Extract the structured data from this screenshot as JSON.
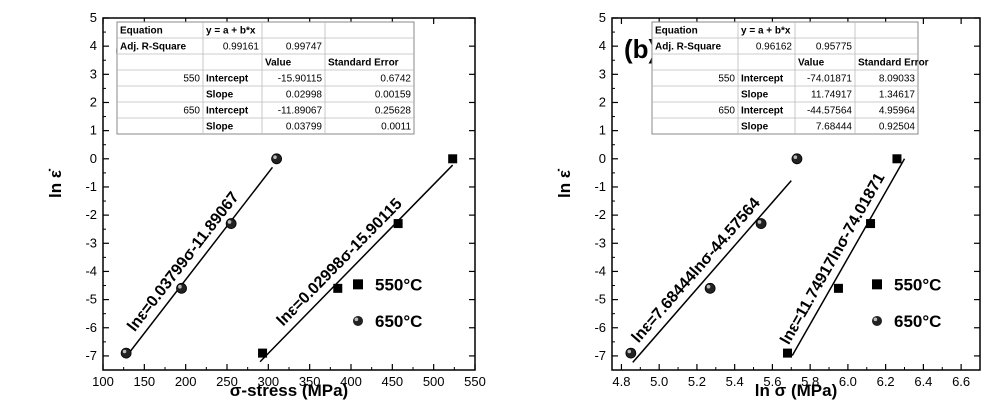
{
  "chart_data": [
    {
      "type": "scatter",
      "panel_label": "(a)",
      "xlabel": "σ-stress (MPa)",
      "ylabel": "ln ε̇",
      "xlim": [
        100,
        550
      ],
      "ylim": [
        -7.5,
        5
      ],
      "x_ticks": [
        "100",
        "150",
        "200",
        "250",
        "300",
        "350",
        "400",
        "450",
        "500",
        "550"
      ],
      "y_ticks": [
        "5",
        "4",
        "3",
        "2",
        "1",
        "0",
        "-1",
        "-2",
        "-3",
        "-4",
        "-5",
        "-6",
        "-7"
      ],
      "series": [
        {
          "name": "550°C",
          "marker": "square",
          "points": [
            [
              293,
              -6.9
            ],
            [
              384,
              -4.6
            ],
            [
              457,
              -2.3
            ],
            [
              523,
              0.0
            ]
          ],
          "fit": {
            "intercept": -15.90115,
            "slope": 0.02998,
            "x_range": [
              290,
              523
            ]
          }
        },
        {
          "name": "650°C",
          "marker": "sphere",
          "points": [
            [
              128,
              -6.9
            ],
            [
              195,
              -4.6
            ],
            [
              255,
              -2.3
            ],
            [
              310,
              0.0
            ]
          ],
          "fit": {
            "intercept": -11.89067,
            "slope": 0.03799,
            "x_range": [
              128,
              305
            ]
          }
        }
      ],
      "annotations": [
        "lnε=0.03799σ-11.89067",
        "lnε=0.02998σ-15.90115"
      ],
      "legend": [
        "550°C",
        "650°C"
      ],
      "table": {
        "rows": [
          [
            "Equation",
            "y = a + b*x",
            "",
            ""
          ],
          [
            "Adj. R-Square",
            "0.99161",
            "0.99747",
            ""
          ],
          [
            "",
            "",
            "Value",
            "Standard Error"
          ],
          [
            "550",
            "Intercept",
            "-15.90115",
            "0.6742"
          ],
          [
            "",
            "Slope",
            "0.02998",
            "0.00159"
          ],
          [
            "650",
            "Intercept",
            "-11.89067",
            "0.25628"
          ],
          [
            "",
            "Slope",
            "0.03799",
            "0.0011"
          ]
        ]
      }
    },
    {
      "type": "scatter",
      "panel_label": "(b)",
      "xlabel": "ln σ (MPa)",
      "ylabel": "ln ε̇",
      "xlim": [
        4.75,
        6.7
      ],
      "ylim": [
        -7.5,
        5
      ],
      "x_ticks": [
        "4.8",
        "5.0",
        "5.2",
        "5.4",
        "5.6",
        "5.8",
        "6.0",
        "6.2",
        "6.4",
        "6.6"
      ],
      "y_ticks": [
        "5",
        "4",
        "3",
        "2",
        "1",
        "0",
        "-1",
        "-2",
        "-3",
        "-4",
        "-5",
        "-6",
        "-7"
      ],
      "series": [
        {
          "name": "550°C",
          "marker": "square",
          "points": [
            [
              5.68,
              -6.9
            ],
            [
              5.95,
              -4.6
            ],
            [
              6.12,
              -2.3
            ],
            [
              6.26,
              0.0
            ]
          ],
          "fit": {
            "intercept": -74.01871,
            "slope": 11.74917,
            "x_range": [
              5.705,
              6.3
            ]
          }
        },
        {
          "name": "650°C",
          "marker": "sphere",
          "points": [
            [
              4.85,
              -6.9
            ],
            [
              5.27,
              -4.6
            ],
            [
              5.54,
              -2.3
            ],
            [
              5.73,
              0.0
            ]
          ],
          "fit": {
            "intercept": -44.57564,
            "slope": 7.68444,
            "x_range": [
              4.86,
              5.7
            ]
          }
        }
      ],
      "annotations": [
        "lnε=7.68444lnσ-44.57564",
        "lnε=11.74917lnσ-74.01871"
      ],
      "legend": [
        "550°C",
        "650°C"
      ],
      "table": {
        "rows": [
          [
            "Equation",
            "y = a + b*x",
            "",
            ""
          ],
          [
            "Adj. R-Square",
            "0.96162",
            "0.95775",
            ""
          ],
          [
            "",
            "",
            "Value",
            "Standard Error"
          ],
          [
            "550",
            "Intercept",
            "-74.01871",
            "8.09033"
          ],
          [
            "",
            "Slope",
            "11.74917",
            "1.34617"
          ],
          [
            "650",
            "Intercept",
            "-44.57564",
            "4.95964"
          ],
          [
            "",
            "Slope",
            "7.68444",
            "0.92504"
          ]
        ]
      }
    }
  ]
}
